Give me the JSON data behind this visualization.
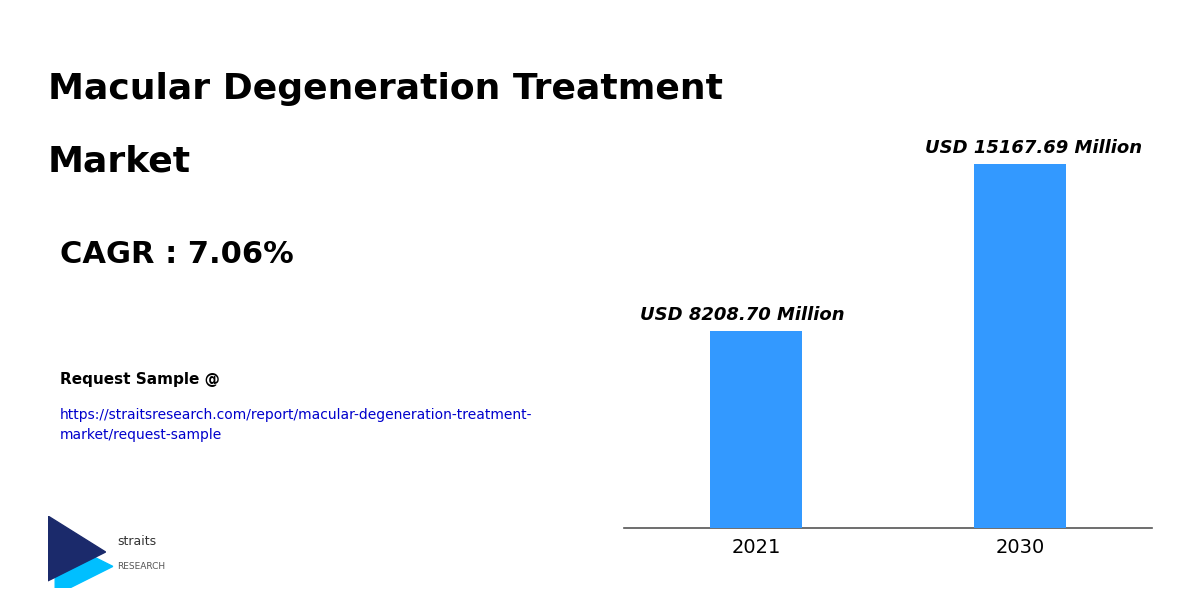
{
  "title_line1": "Macular Degeneration Treatment",
  "title_line2": "Market",
  "cagr_text": "CAGR : 7.06%",
  "request_text": "Request Sample @",
  "url_text": "https://straitsresearch.com/report/macular-degeneration-treatment-\nmarket/request-sample",
  "categories": [
    "2021",
    "2030"
  ],
  "values": [
    8208.7,
    15167.69
  ],
  "bar_labels": [
    "USD 8208.70 Million",
    "USD 15167.69 Million"
  ],
  "bar_color": "#3399FF",
  "background_color": "#FFFFFF",
  "title_fontsize": 26,
  "cagr_fontsize": 22,
  "bar_label_fontsize": 13,
  "axis_tick_fontsize": 14,
  "logo_dark_color": "#1B2A6B",
  "logo_cyan_color": "#00BFFF"
}
